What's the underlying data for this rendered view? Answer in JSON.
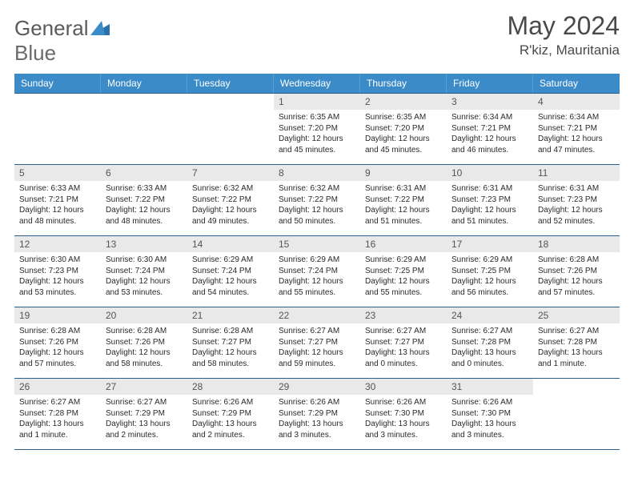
{
  "brand": {
    "name1": "General",
    "name2": "Blue"
  },
  "title": "May 2024",
  "location": "R'kiz, Mauritania",
  "header_bg": "#3b8bc9",
  "header_fg": "#ffffff",
  "daynum_bg": "#e9e9e9",
  "rule_color": "#2b5f8a",
  "days": [
    "Sunday",
    "Monday",
    "Tuesday",
    "Wednesday",
    "Thursday",
    "Friday",
    "Saturday"
  ],
  "weeks": [
    [
      {
        "n": "",
        "empty": true
      },
      {
        "n": "",
        "empty": true
      },
      {
        "n": "",
        "empty": true
      },
      {
        "n": "1",
        "sr": "Sunrise: 6:35 AM",
        "ss": "Sunset: 7:20 PM",
        "dl1": "Daylight: 12 hours",
        "dl2": "and 45 minutes."
      },
      {
        "n": "2",
        "sr": "Sunrise: 6:35 AM",
        "ss": "Sunset: 7:20 PM",
        "dl1": "Daylight: 12 hours",
        "dl2": "and 45 minutes."
      },
      {
        "n": "3",
        "sr": "Sunrise: 6:34 AM",
        "ss": "Sunset: 7:21 PM",
        "dl1": "Daylight: 12 hours",
        "dl2": "and 46 minutes."
      },
      {
        "n": "4",
        "sr": "Sunrise: 6:34 AM",
        "ss": "Sunset: 7:21 PM",
        "dl1": "Daylight: 12 hours",
        "dl2": "and 47 minutes."
      }
    ],
    [
      {
        "n": "5",
        "sr": "Sunrise: 6:33 AM",
        "ss": "Sunset: 7:21 PM",
        "dl1": "Daylight: 12 hours",
        "dl2": "and 48 minutes."
      },
      {
        "n": "6",
        "sr": "Sunrise: 6:33 AM",
        "ss": "Sunset: 7:22 PM",
        "dl1": "Daylight: 12 hours",
        "dl2": "and 48 minutes."
      },
      {
        "n": "7",
        "sr": "Sunrise: 6:32 AM",
        "ss": "Sunset: 7:22 PM",
        "dl1": "Daylight: 12 hours",
        "dl2": "and 49 minutes."
      },
      {
        "n": "8",
        "sr": "Sunrise: 6:32 AM",
        "ss": "Sunset: 7:22 PM",
        "dl1": "Daylight: 12 hours",
        "dl2": "and 50 minutes."
      },
      {
        "n": "9",
        "sr": "Sunrise: 6:31 AM",
        "ss": "Sunset: 7:22 PM",
        "dl1": "Daylight: 12 hours",
        "dl2": "and 51 minutes."
      },
      {
        "n": "10",
        "sr": "Sunrise: 6:31 AM",
        "ss": "Sunset: 7:23 PM",
        "dl1": "Daylight: 12 hours",
        "dl2": "and 51 minutes."
      },
      {
        "n": "11",
        "sr": "Sunrise: 6:31 AM",
        "ss": "Sunset: 7:23 PM",
        "dl1": "Daylight: 12 hours",
        "dl2": "and 52 minutes."
      }
    ],
    [
      {
        "n": "12",
        "sr": "Sunrise: 6:30 AM",
        "ss": "Sunset: 7:23 PM",
        "dl1": "Daylight: 12 hours",
        "dl2": "and 53 minutes."
      },
      {
        "n": "13",
        "sr": "Sunrise: 6:30 AM",
        "ss": "Sunset: 7:24 PM",
        "dl1": "Daylight: 12 hours",
        "dl2": "and 53 minutes."
      },
      {
        "n": "14",
        "sr": "Sunrise: 6:29 AM",
        "ss": "Sunset: 7:24 PM",
        "dl1": "Daylight: 12 hours",
        "dl2": "and 54 minutes."
      },
      {
        "n": "15",
        "sr": "Sunrise: 6:29 AM",
        "ss": "Sunset: 7:24 PM",
        "dl1": "Daylight: 12 hours",
        "dl2": "and 55 minutes."
      },
      {
        "n": "16",
        "sr": "Sunrise: 6:29 AM",
        "ss": "Sunset: 7:25 PM",
        "dl1": "Daylight: 12 hours",
        "dl2": "and 55 minutes."
      },
      {
        "n": "17",
        "sr": "Sunrise: 6:29 AM",
        "ss": "Sunset: 7:25 PM",
        "dl1": "Daylight: 12 hours",
        "dl2": "and 56 minutes."
      },
      {
        "n": "18",
        "sr": "Sunrise: 6:28 AM",
        "ss": "Sunset: 7:26 PM",
        "dl1": "Daylight: 12 hours",
        "dl2": "and 57 minutes."
      }
    ],
    [
      {
        "n": "19",
        "sr": "Sunrise: 6:28 AM",
        "ss": "Sunset: 7:26 PM",
        "dl1": "Daylight: 12 hours",
        "dl2": "and 57 minutes."
      },
      {
        "n": "20",
        "sr": "Sunrise: 6:28 AM",
        "ss": "Sunset: 7:26 PM",
        "dl1": "Daylight: 12 hours",
        "dl2": "and 58 minutes."
      },
      {
        "n": "21",
        "sr": "Sunrise: 6:28 AM",
        "ss": "Sunset: 7:27 PM",
        "dl1": "Daylight: 12 hours",
        "dl2": "and 58 minutes."
      },
      {
        "n": "22",
        "sr": "Sunrise: 6:27 AM",
        "ss": "Sunset: 7:27 PM",
        "dl1": "Daylight: 12 hours",
        "dl2": "and 59 minutes."
      },
      {
        "n": "23",
        "sr": "Sunrise: 6:27 AM",
        "ss": "Sunset: 7:27 PM",
        "dl1": "Daylight: 13 hours",
        "dl2": "and 0 minutes."
      },
      {
        "n": "24",
        "sr": "Sunrise: 6:27 AM",
        "ss": "Sunset: 7:28 PM",
        "dl1": "Daylight: 13 hours",
        "dl2": "and 0 minutes."
      },
      {
        "n": "25",
        "sr": "Sunrise: 6:27 AM",
        "ss": "Sunset: 7:28 PM",
        "dl1": "Daylight: 13 hours",
        "dl2": "and 1 minute."
      }
    ],
    [
      {
        "n": "26",
        "sr": "Sunrise: 6:27 AM",
        "ss": "Sunset: 7:28 PM",
        "dl1": "Daylight: 13 hours",
        "dl2": "and 1 minute."
      },
      {
        "n": "27",
        "sr": "Sunrise: 6:27 AM",
        "ss": "Sunset: 7:29 PM",
        "dl1": "Daylight: 13 hours",
        "dl2": "and 2 minutes."
      },
      {
        "n": "28",
        "sr": "Sunrise: 6:26 AM",
        "ss": "Sunset: 7:29 PM",
        "dl1": "Daylight: 13 hours",
        "dl2": "and 2 minutes."
      },
      {
        "n": "29",
        "sr": "Sunrise: 6:26 AM",
        "ss": "Sunset: 7:29 PM",
        "dl1": "Daylight: 13 hours",
        "dl2": "and 3 minutes."
      },
      {
        "n": "30",
        "sr": "Sunrise: 6:26 AM",
        "ss": "Sunset: 7:30 PM",
        "dl1": "Daylight: 13 hours",
        "dl2": "and 3 minutes."
      },
      {
        "n": "31",
        "sr": "Sunrise: 6:26 AM",
        "ss": "Sunset: 7:30 PM",
        "dl1": "Daylight: 13 hours",
        "dl2": "and 3 minutes."
      },
      {
        "n": "",
        "empty": true
      }
    ]
  ]
}
